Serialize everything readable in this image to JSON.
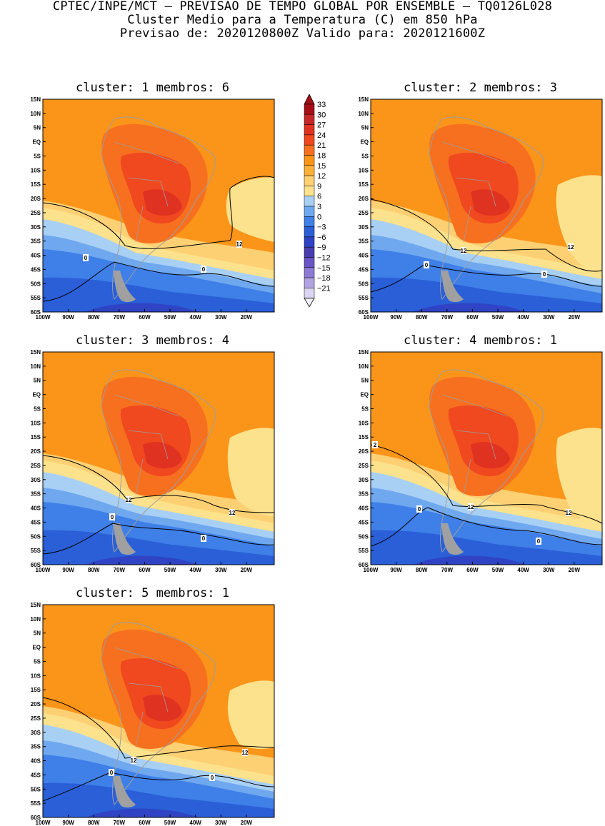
{
  "header": {
    "line1": "CPTEC/INPE/MCT – PREVISAO DE TEMPO GLOBAL POR ENSEMBLE – TQ0126L028",
    "line2": "Cluster Medio para a Temperatura (C) em 850 hPa",
    "line3": "Previsao de: 2020120800Z   Valido para: 2020121600Z"
  },
  "panels": [
    {
      "title": "cluster: 1   membros: 6"
    },
    {
      "title": "cluster: 2   membros: 3"
    },
    {
      "title": "cluster: 3   membros: 4"
    },
    {
      "title": "cluster: 4   membros: 1"
    },
    {
      "title": "cluster: 5   membros: 1"
    }
  ],
  "axes": {
    "lat_labels": [
      "15N",
      "10N",
      "5N",
      "EQ",
      "5S",
      "10S",
      "15S",
      "20S",
      "25S",
      "30S",
      "35S",
      "40S",
      "45S",
      "50S",
      "55S",
      "60S"
    ],
    "lon_labels": [
      "100W",
      "90W",
      "80W",
      "70W",
      "60W",
      "50W",
      "40W",
      "30W",
      "20W"
    ]
  },
  "colorbar": {
    "levels": [
      "33",
      "30",
      "27",
      "24",
      "21",
      "18",
      "15",
      "12",
      "9",
      "6",
      "3",
      "0",
      "−3",
      "−6",
      "−9",
      "−12",
      "−15",
      "−18",
      "−21"
    ],
    "colors": [
      "#a50f15",
      "#c62828",
      "#e03220",
      "#f0481f",
      "#f7701f",
      "#fb951a",
      "#fdb13a",
      "#fdd074",
      "#fce28c",
      "#a8d0f5",
      "#6fa8ef",
      "#3f7fe8",
      "#2a5fd8",
      "#2f43c4",
      "#4a3db0",
      "#6a55c4",
      "#8c7ad4",
      "#b2a4e2",
      "#dcd6f2"
    ]
  },
  "contour_labels": {
    "p1": [
      "0",
      "0",
      "12"
    ],
    "p2": [
      "12",
      "0",
      "0",
      "12"
    ],
    "p3": [
      "12",
      "0",
      "0",
      "12"
    ],
    "p4": [
      "2",
      "12",
      "0",
      "0",
      "12"
    ],
    "p5": [
      "0",
      "12",
      "12",
      "0"
    ]
  }
}
